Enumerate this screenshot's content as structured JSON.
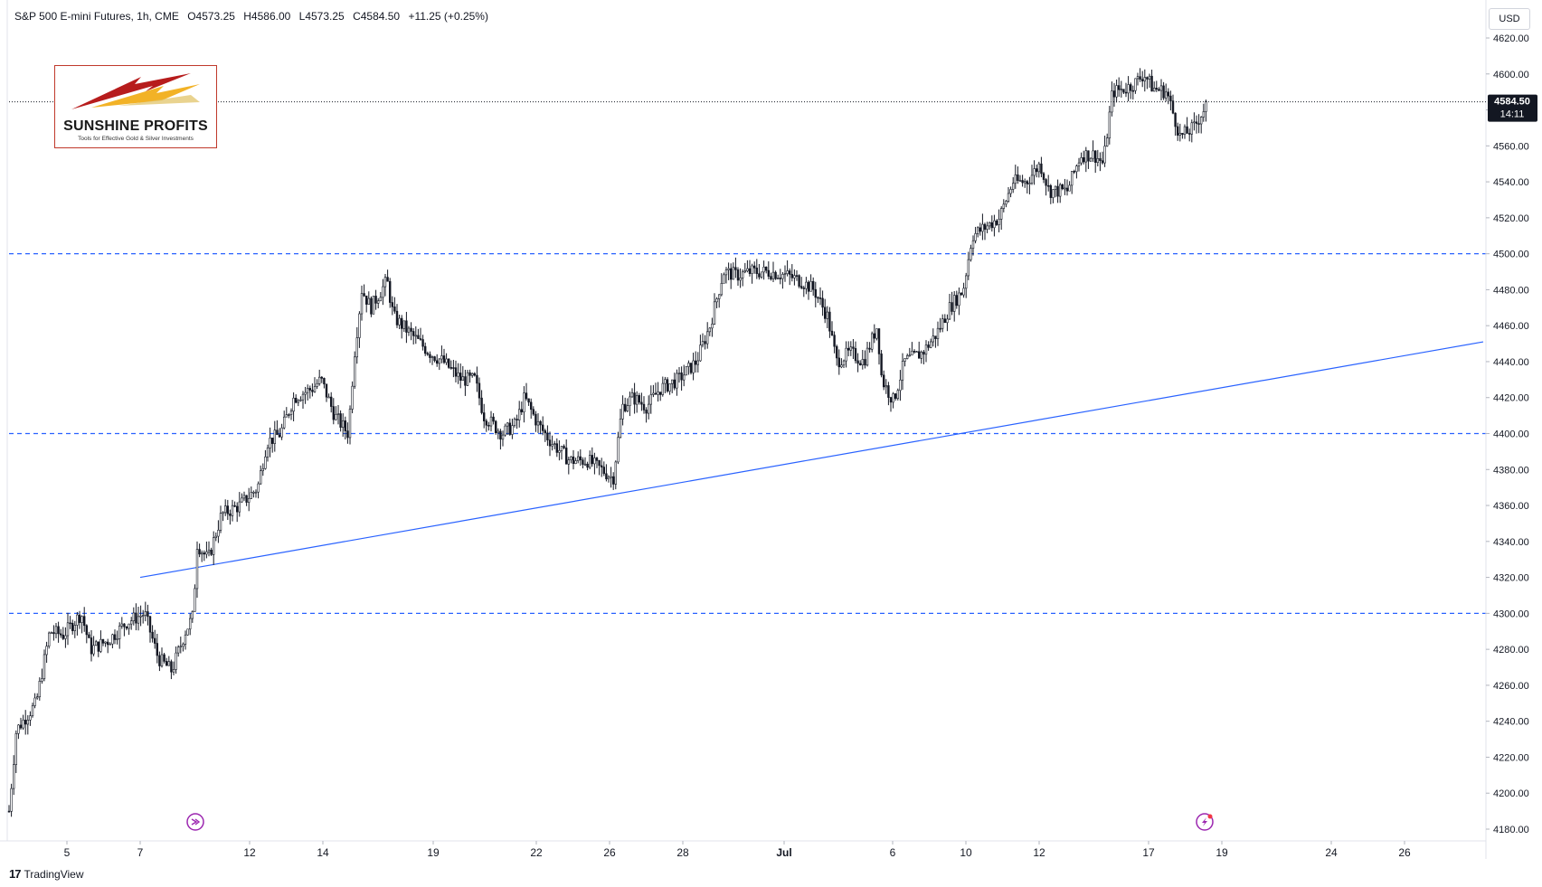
{
  "header": {
    "symbol": "S&P 500 E-mini Futures, 1h, CME",
    "open": "O4573.25",
    "high": "H4586.00",
    "low": "L4573.25",
    "close": "C4584.50",
    "change": "+11.25 (+0.25%)"
  },
  "currency": "USD",
  "logo": {
    "name": "SUNSHINE PROFITS",
    "tagline": "Tools for Effective Gold & Silver Investments"
  },
  "branding": {
    "name": "TradingView",
    "mark": "17"
  },
  "price_label": {
    "price": "4584.50",
    "countdown": "14:11"
  },
  "colors": {
    "candle": "#131722",
    "levels": "#2962ff",
    "trendline": "#2962ff",
    "marker": "#9c27b0"
  },
  "chart_data": {
    "type": "candlestick",
    "title": "S&P 500 E-mini Futures, 1h, CME",
    "y_range": [
      4175,
      4627
    ],
    "y_ticks": [
      4180,
      4200,
      4220,
      4240,
      4260,
      4280,
      4300,
      4320,
      4340,
      4360,
      4380,
      4400,
      4420,
      4440,
      4460,
      4480,
      4500,
      4520,
      4540,
      4560,
      4580,
      4600,
      4620
    ],
    "x_ticks": [
      "5",
      "7",
      "12",
      "14",
      "19",
      "22",
      "26",
      "28",
      "Jul",
      "6",
      "10",
      "12",
      "17",
      "19",
      "24",
      "26"
    ],
    "horizontal_levels": [
      4300,
      4400,
      4500
    ],
    "last_price": 4584.5,
    "trendline": {
      "start": [
        "7",
        4320
      ],
      "end": [
        "end",
        4451
      ]
    },
    "price_path": [
      [
        0,
        4190
      ],
      [
        8,
        4235
      ],
      [
        30,
        4250
      ],
      [
        45,
        4290
      ],
      [
        60,
        4288
      ],
      [
        80,
        4300
      ],
      [
        90,
        4280
      ],
      [
        110,
        4285
      ],
      [
        130,
        4295
      ],
      [
        150,
        4300
      ],
      [
        165,
        4275
      ],
      [
        180,
        4268
      ],
      [
        195,
        4290
      ],
      [
        205,
        4300
      ],
      [
        206,
        4340
      ],
      [
        220,
        4330
      ],
      [
        235,
        4355
      ],
      [
        255,
        4360
      ],
      [
        275,
        4370
      ],
      [
        285,
        4395
      ],
      [
        300,
        4400
      ],
      [
        315,
        4420
      ],
      [
        335,
        4425
      ],
      [
        345,
        4430
      ],
      [
        360,
        4410
      ],
      [
        375,
        4400
      ],
      [
        382,
        4445
      ],
      [
        390,
        4480
      ],
      [
        400,
        4470
      ],
      [
        418,
        4485
      ],
      [
        425,
        4465
      ],
      [
        445,
        4455
      ],
      [
        465,
        4445
      ],
      [
        480,
        4440
      ],
      [
        500,
        4430
      ],
      [
        515,
        4430
      ],
      [
        525,
        4410
      ],
      [
        545,
        4400
      ],
      [
        560,
        4405
      ],
      [
        570,
        4420
      ],
      [
        585,
        4405
      ],
      [
        600,
        4395
      ],
      [
        620,
        4385
      ],
      [
        640,
        4385
      ],
      [
        655,
        4380
      ],
      [
        668,
        4375
      ],
      [
        678,
        4415
      ],
      [
        690,
        4420
      ],
      [
        705,
        4415
      ],
      [
        720,
        4425
      ],
      [
        740,
        4430
      ],
      [
        760,
        4440
      ],
      [
        775,
        4460
      ],
      [
        790,
        4490
      ],
      [
        805,
        4488
      ],
      [
        820,
        4490
      ],
      [
        840,
        4490
      ],
      [
        860,
        4488
      ],
      [
        875,
        4485
      ],
      [
        890,
        4480
      ],
      [
        905,
        4465
      ],
      [
        915,
        4440
      ],
      [
        930,
        4445
      ],
      [
        945,
        4440
      ],
      [
        960,
        4460
      ],
      [
        965,
        4430
      ],
      [
        978,
        4418
      ],
      [
        990,
        4440
      ],
      [
        1010,
        4445
      ],
      [
        1025,
        4455
      ],
      [
        1040,
        4470
      ],
      [
        1055,
        4480
      ],
      [
        1065,
        4510
      ],
      [
        1080,
        4515
      ],
      [
        1095,
        4520
      ],
      [
        1110,
        4540
      ],
      [
        1125,
        4540
      ],
      [
        1140,
        4550
      ],
      [
        1150,
        4535
      ],
      [
        1170,
        4535
      ],
      [
        1185,
        4555
      ],
      [
        1200,
        4555
      ],
      [
        1210,
        4550
      ],
      [
        1220,
        4590
      ],
      [
        1235,
        4592
      ],
      [
        1245,
        4595
      ],
      [
        1255,
        4600
      ],
      [
        1265,
        4592
      ],
      [
        1280,
        4590
      ],
      [
        1295,
        4565
      ],
      [
        1310,
        4570
      ],
      [
        1325,
        4584
      ]
    ],
    "markers": [
      {
        "x": 206,
        "type": "replay"
      },
      {
        "x": 1322,
        "type": "alert"
      }
    ]
  }
}
